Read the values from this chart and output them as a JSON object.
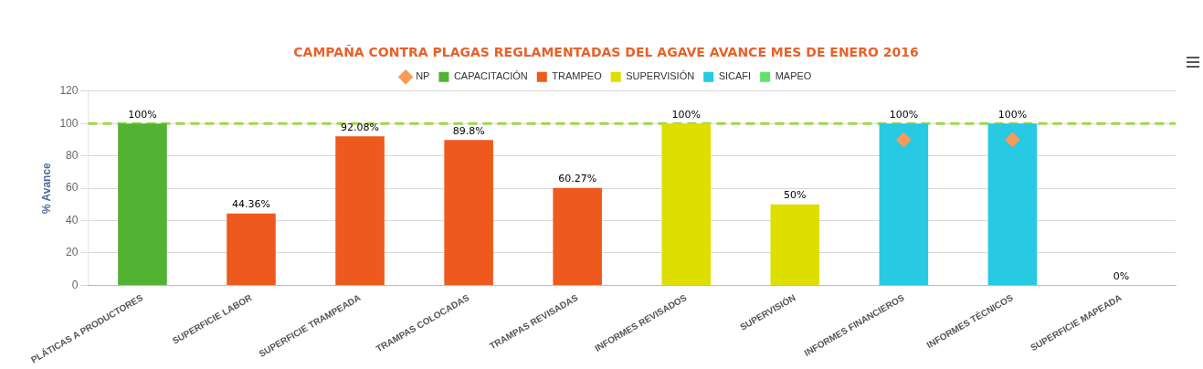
{
  "chart_data": {
    "type": "bar",
    "title": "CAMPAÑA CONTRA PLAGAS REGLAMENTADAS DEL AGAVE AVANCE MES DE ENERO 2016",
    "ylabel": "% Avance",
    "categories": [
      "PLÁTICAS A PRODUCTORES",
      "SUPERFICIE LABOR",
      "SUPERFICIE TRAMPEADA",
      "TRAMPAS COLOCADAS",
      "TRAMPAS REVISADAS",
      "INFORMES REVISADOS",
      "SUPERVISIÓN",
      "INFORMES FINANCIEROS",
      "INFORMES TÉCNICOS",
      "SUPERFICIE MAPEADA"
    ],
    "series": [
      {
        "name": "CAPACITACIÓN",
        "color": "#52b333",
        "values": [
          100,
          null,
          null,
          null,
          null,
          null,
          null,
          null,
          null,
          null
        ],
        "value_labels": [
          "100%",
          null,
          null,
          null,
          null,
          null,
          null,
          null,
          null,
          null
        ]
      },
      {
        "name": "TRAMPEO",
        "color": "#ee5a1e",
        "values": [
          null,
          44.36,
          92.08,
          89.8,
          60.27,
          null,
          null,
          null,
          null,
          null
        ],
        "value_labels": [
          null,
          "44.36%",
          "92.08%",
          "89.8%",
          "60.27%",
          null,
          null,
          null,
          null,
          null
        ]
      },
      {
        "name": "SUPERVISIÓN",
        "color": "#dede00",
        "values": [
          null,
          null,
          null,
          null,
          null,
          100,
          50,
          null,
          null,
          null
        ],
        "value_labels": [
          null,
          null,
          null,
          null,
          null,
          "100%",
          "50%",
          null,
          null,
          null
        ]
      },
      {
        "name": "SICAFI",
        "color": "#27c9e3",
        "values": [
          null,
          null,
          null,
          null,
          null,
          null,
          null,
          100,
          100,
          null
        ],
        "value_labels": [
          null,
          null,
          null,
          null,
          null,
          null,
          null,
          "100%",
          "100%",
          null
        ]
      },
      {
        "name": "MAPEO",
        "color": "#63e26a",
        "values": [
          null,
          null,
          null,
          null,
          null,
          null,
          null,
          null,
          null,
          0
        ],
        "value_labels": [
          null,
          null,
          null,
          null,
          null,
          null,
          null,
          null,
          null,
          "0%"
        ]
      },
      {
        "name": "NP",
        "type": "scatter",
        "marker": "diamond",
        "color": "#f79b5a",
        "x": [
          "INFORMES FINANCIEROS",
          "INFORMES TÉCNICOS"
        ],
        "values": [
          90,
          90
        ]
      }
    ],
    "ylim": [
      0,
      120
    ],
    "yticks": [
      0,
      20,
      40,
      60,
      80,
      100,
      120
    ],
    "grid": "y",
    "legend": "top",
    "ref_lines": [
      {
        "axis": "y",
        "value": 100,
        "color": "#9ad94a",
        "line_style": "dashed"
      }
    ]
  }
}
